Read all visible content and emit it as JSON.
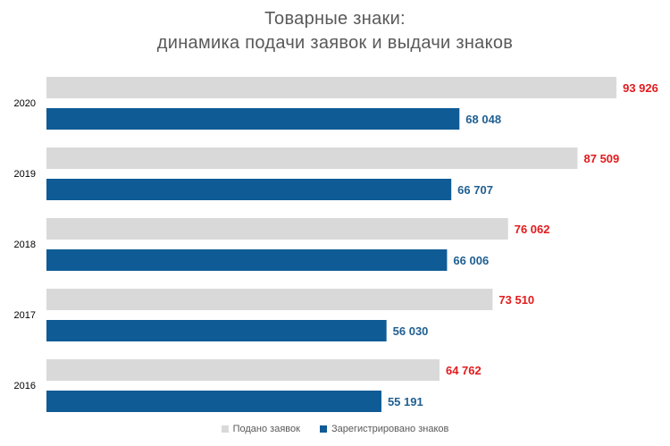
{
  "chart_data": {
    "type": "bar",
    "orientation": "horizontal",
    "title": [
      "Товарные знаки:",
      "динамика подачи заявок и выдачи знаков"
    ],
    "categories": [
      "2020",
      "2019",
      "2018",
      "2017",
      "2016"
    ],
    "series": [
      {
        "name": "Подано заявок",
        "color": "#d9d9d9",
        "label_color": "#e31a1c",
        "values": [
          93926,
          87509,
          76062,
          73510,
          64762
        ],
        "labels": [
          "93 926",
          "87 509",
          "76 062",
          "73 510",
          "64 762"
        ]
      },
      {
        "name": "Зарегистрировано знаков",
        "color": "#0f5b96",
        "label_color": "#1f5f91",
        "values": [
          68048,
          66707,
          66006,
          56030,
          55191
        ],
        "labels": [
          "68 048",
          "66 707",
          "66 006",
          "56 030",
          "55 191"
        ]
      }
    ],
    "xlim": [
      0,
      94500
    ],
    "grid": false,
    "legend_position": "bottom"
  }
}
